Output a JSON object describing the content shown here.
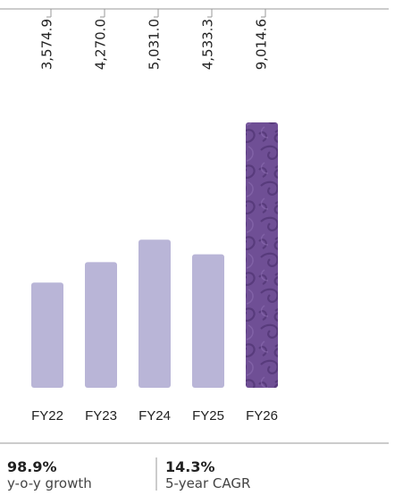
{
  "chart_data": {
    "type": "bar",
    "categories": [
      "FY22",
      "FY23",
      "FY24",
      "FY25",
      "FY26"
    ],
    "values": [
      3574.9,
      4270.0,
      5031.0,
      4533.3,
      9014.6
    ],
    "value_labels": [
      "3,574.9",
      "4,270.0",
      "5,031.0",
      "4,533.3",
      "9,014.6"
    ],
    "colors": [
      "#b9b5d7",
      "#b9b5d7",
      "#b9b5d7",
      "#b9b5d7",
      "#6f4f95"
    ]
  },
  "stats": [
    {
      "value": "98.9%",
      "label": "y-o-y growth"
    },
    {
      "value": "14.3%",
      "label": "5-year CAGR"
    }
  ]
}
